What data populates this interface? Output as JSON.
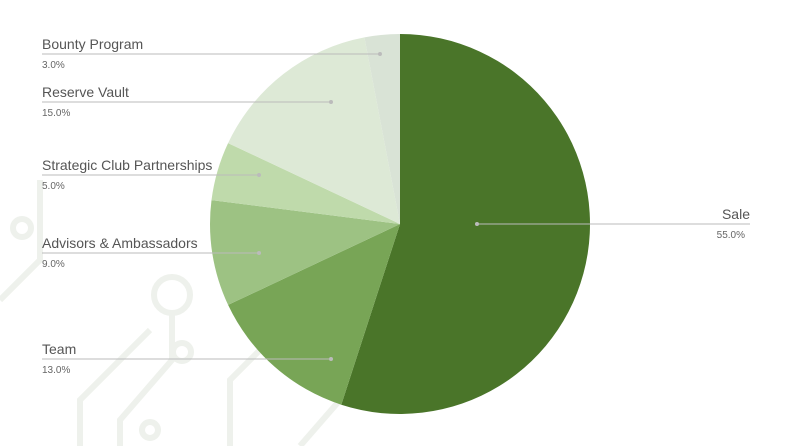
{
  "chart_data": {
    "type": "pie",
    "categories": [
      "Sale",
      "Team",
      "Advisors & Ambassadors",
      "Strategic Club Partnerships",
      "Reserve Vault",
      "Bounty Program"
    ],
    "values": [
      55,
      13,
      9,
      5,
      15,
      3
    ],
    "value_labels": [
      "55.0%",
      "13.0%",
      "9.0%",
      "5.0%",
      "15.0%",
      "3.0%"
    ],
    "colors": [
      "#4a7529",
      "#78a556",
      "#9dc283",
      "#bfdaab",
      "#dde9d6",
      "#d9e3d6"
    ]
  }
}
